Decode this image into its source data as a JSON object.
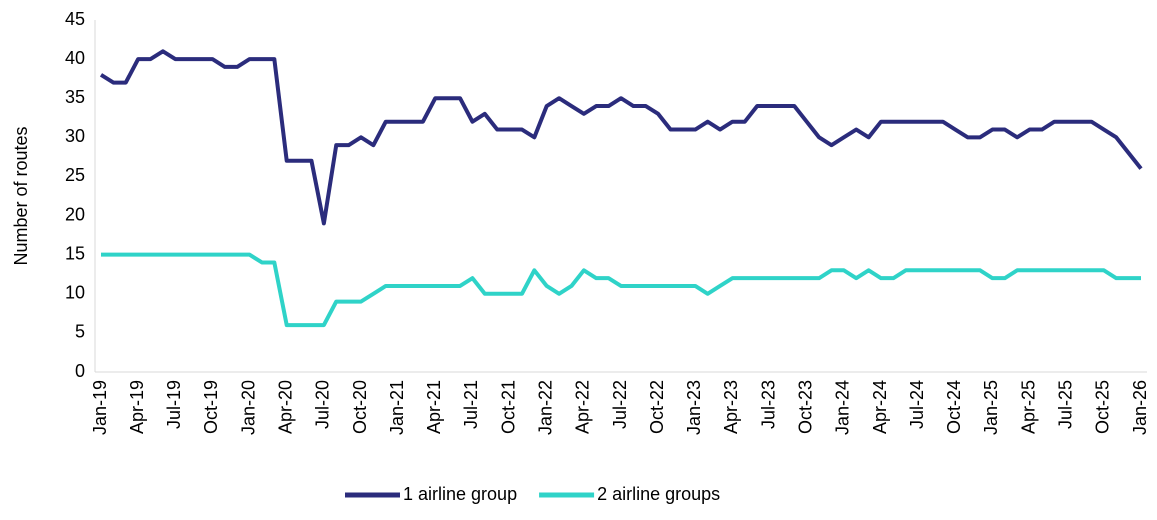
{
  "chart_data": {
    "type": "line",
    "y_label": "Number of routes",
    "categories": [
      "Jan-19",
      null,
      null,
      "Apr-19",
      null,
      null,
      "Jul-19",
      null,
      null,
      "Oct-19",
      null,
      null,
      "Jan-20",
      null,
      null,
      "Apr-20",
      null,
      null,
      "Jul-20",
      null,
      null,
      "Oct-20",
      null,
      null,
      "Jan-21",
      null,
      null,
      "Apr-21",
      null,
      null,
      "Jul-21",
      null,
      null,
      "Oct-21",
      null,
      null,
      "Jan-22",
      null,
      null,
      "Apr-22",
      null,
      null,
      "Jul-22",
      null,
      null,
      "Oct-22",
      null,
      null,
      "Jan-23",
      null,
      null,
      "Apr-23",
      null,
      null,
      "Jul-23",
      null,
      null,
      "Oct-23",
      null,
      null,
      "Jan-24",
      null,
      null,
      "Apr-24",
      null,
      null,
      "Jul-24",
      null,
      null,
      "Oct-24",
      null,
      null,
      "Jan-25",
      null,
      null,
      "Apr-25",
      null,
      null,
      "Jul-25",
      null,
      null,
      "Oct-25",
      null,
      null,
      "Jan-26"
    ],
    "series": [
      {
        "name": "1 airline group",
        "color": "#2b2c7c",
        "values": [
          38,
          37,
          37,
          40,
          40,
          41,
          40,
          40,
          40,
          40,
          39,
          39,
          40,
          40,
          40,
          27,
          27,
          27,
          19,
          29,
          29,
          30,
          29,
          32,
          32,
          32,
          32,
          35,
          35,
          35,
          32,
          33,
          31,
          31,
          31,
          30,
          34,
          35,
          34,
          33,
          34,
          34,
          35,
          34,
          34,
          33,
          31,
          31,
          31,
          32,
          31,
          32,
          32,
          34,
          34,
          34,
          34,
          32,
          30,
          29,
          30,
          31,
          30,
          32,
          32,
          32,
          32,
          32,
          32,
          31,
          30,
          30,
          31,
          31,
          30,
          31,
          31,
          32,
          32,
          32,
          32,
          31,
          30,
          28,
          26
        ]
      },
      {
        "name": "2 airline groups",
        "color": "#2fd3c8",
        "values": [
          15,
          15,
          15,
          15,
          15,
          15,
          15,
          15,
          15,
          15,
          15,
          15,
          15,
          14,
          14,
          6,
          6,
          6,
          6,
          9,
          9,
          9,
          10,
          11,
          11,
          11,
          11,
          11,
          11,
          11,
          12,
          10,
          10,
          10,
          10,
          13,
          11,
          10,
          11,
          13,
          12,
          12,
          11,
          11,
          11,
          11,
          11,
          11,
          11,
          10,
          11,
          12,
          12,
          12,
          12,
          12,
          12,
          12,
          12,
          13,
          13,
          12,
          13,
          12,
          12,
          13,
          13,
          13,
          13,
          13,
          13,
          13,
          12,
          12,
          13,
          13,
          13,
          13,
          13,
          13,
          13,
          13,
          12,
          12,
          12
        ]
      }
    ],
    "ylim": [
      0,
      45
    ],
    "yticks": [
      0,
      5,
      10,
      15,
      20,
      25,
      30,
      35,
      40,
      45
    ],
    "legend": "bottom"
  }
}
